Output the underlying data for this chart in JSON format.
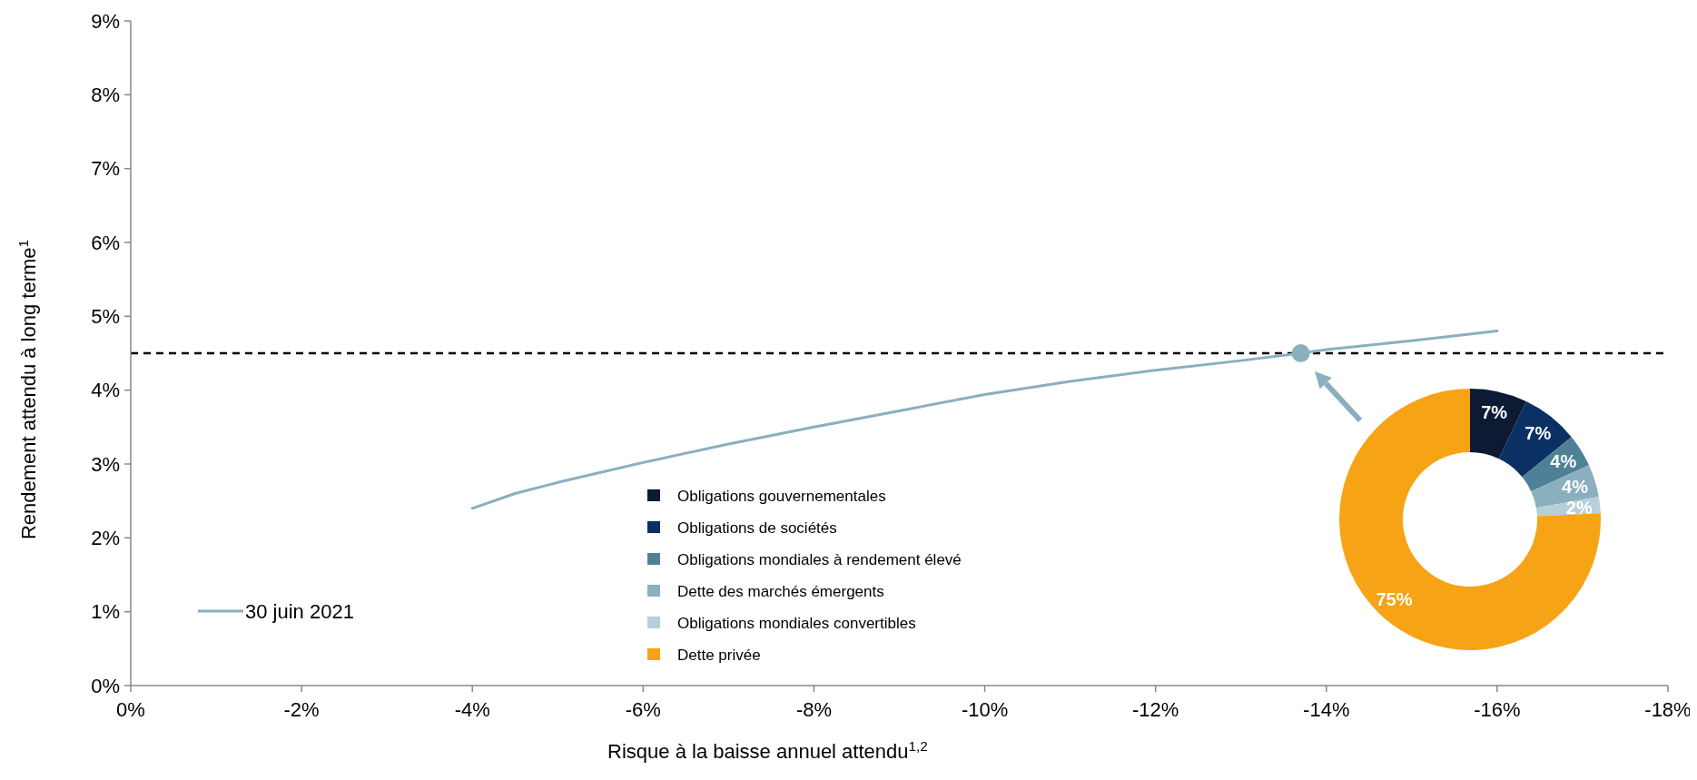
{
  "chart_data": [
    {
      "type": "line",
      "xlabel": "Risque à la baisse annuel attendu$^{1,2}$",
      "ylabel": "Rendement attendu à long terme$^{1}$",
      "xlim": [
        0,
        -18
      ],
      "xticks": [
        {
          "value": 0,
          "label": "0%"
        },
        {
          "value": -2,
          "label": "-2%"
        },
        {
          "value": -4,
          "label": "-4%"
        },
        {
          "value": -6,
          "label": "-6%"
        },
        {
          "value": -8,
          "label": "-8%"
        },
        {
          "value": -10,
          "label": "-10%"
        },
        {
          "value": -12,
          "label": "-12%"
        },
        {
          "value": -14,
          "label": "-14%"
        },
        {
          "value": -16,
          "label": "-16%"
        },
        {
          "value": -18,
          "label": "-18%"
        }
      ],
      "ylim": [
        0,
        9
      ],
      "yticks": [
        {
          "value": 0,
          "label": "0%"
        },
        {
          "value": 1,
          "label": "1%"
        },
        {
          "value": 2,
          "label": "2%"
        },
        {
          "value": 3,
          "label": "3%"
        },
        {
          "value": 4,
          "label": "4%"
        },
        {
          "value": 5,
          "label": "5%"
        },
        {
          "value": 6,
          "label": "6%"
        },
        {
          "value": 7,
          "label": "7%"
        },
        {
          "value": 8,
          "label": "8%"
        },
        {
          "value": 9,
          "label": "9%"
        }
      ],
      "series": [
        {
          "name": "30 juin 2021",
          "color": "#8aafbf",
          "type": "line",
          "marker": "none",
          "x": [
            -4,
            -4.5,
            -5,
            -6,
            -7,
            -8,
            -9,
            -10,
            -11,
            -12,
            -13,
            -13.7,
            -14,
            -15,
            -16
          ],
          "values": [
            2.4,
            2.6,
            2.75,
            3.02,
            3.27,
            3.5,
            3.72,
            3.94,
            4.12,
            4.27,
            4.4,
            4.5,
            4.55,
            4.67,
            4.8
          ]
        },
        {
          "color": "#8aafbf",
          "type": "scatter",
          "marker": "circle",
          "x": [
            -13.7
          ],
          "values": [
            4.5
          ]
        }
      ],
      "ref_lines": [
        {
          "axis": "y",
          "value": 4.5,
          "color": "#000000",
          "line_style": "dashed"
        }
      ],
      "legend": "bottom left",
      "grid": false
    },
    {
      "type": "donut",
      "categories": [
        "Obligations gouvernementales",
        "Obligations de sociétés",
        "Obligations mondiales à rendement élevé",
        "Dette des marchés émergents",
        "Obligations mondiales convertibles",
        "Dette privée"
      ],
      "values": [
        7,
        7,
        4,
        4,
        2,
        75
      ],
      "colors": [
        "#0c1a33",
        "#0a3064",
        "#4f8196",
        "#8aafbf",
        "#b6cfd9",
        "#f6a416"
      ],
      "value_labels": [
        "7%",
        "7%",
        "4%",
        "4%",
        "2%",
        "75%"
      ],
      "legend": "left"
    }
  ]
}
